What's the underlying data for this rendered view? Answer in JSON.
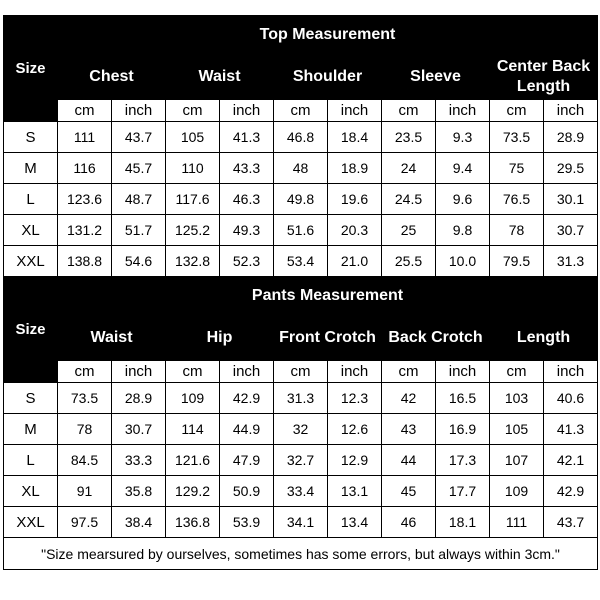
{
  "size_label": "Size",
  "unit_cm": "cm",
  "unit_inch": "inch",
  "top": {
    "title": "Top Measurement",
    "groups": [
      "Chest",
      "Waist",
      "Shoulder",
      "Sleeve",
      "Center Back Length"
    ],
    "rows": [
      {
        "size": "S",
        "values": [
          "111",
          "43.7",
          "105",
          "41.3",
          "46.8",
          "18.4",
          "23.5",
          "9.3",
          "73.5",
          "28.9"
        ]
      },
      {
        "size": "M",
        "values": [
          "116",
          "45.7",
          "110",
          "43.3",
          "48",
          "18.9",
          "24",
          "9.4",
          "75",
          "29.5"
        ]
      },
      {
        "size": "L",
        "values": [
          "123.6",
          "48.7",
          "117.6",
          "46.3",
          "49.8",
          "19.6",
          "24.5",
          "9.6",
          "76.5",
          "30.1"
        ]
      },
      {
        "size": "XL",
        "values": [
          "131.2",
          "51.7",
          "125.2",
          "49.3",
          "51.6",
          "20.3",
          "25",
          "9.8",
          "78",
          "30.7"
        ]
      },
      {
        "size": "XXL",
        "values": [
          "138.8",
          "54.6",
          "132.8",
          "52.3",
          "53.4",
          "21.0",
          "25.5",
          "10.0",
          "79.5",
          "31.3"
        ]
      }
    ]
  },
  "pants": {
    "title": "Pants Measurement",
    "groups": [
      "Waist",
      "Hip",
      "Front Crotch",
      "Back Crotch",
      "Length"
    ],
    "rows": [
      {
        "size": "S",
        "values": [
          "73.5",
          "28.9",
          "109",
          "42.9",
          "31.3",
          "12.3",
          "42",
          "16.5",
          "103",
          "40.6"
        ]
      },
      {
        "size": "M",
        "values": [
          "78",
          "30.7",
          "114",
          "44.9",
          "32",
          "12.6",
          "43",
          "16.9",
          "105",
          "41.3"
        ]
      },
      {
        "size": "L",
        "values": [
          "84.5",
          "33.3",
          "121.6",
          "47.9",
          "32.7",
          "12.9",
          "44",
          "17.3",
          "107",
          "42.1"
        ]
      },
      {
        "size": "XL",
        "values": [
          "91",
          "35.8",
          "129.2",
          "50.9",
          "33.4",
          "13.1",
          "45",
          "17.7",
          "109",
          "42.9"
        ]
      },
      {
        "size": "XXL",
        "values": [
          "97.5",
          "38.4",
          "136.8",
          "53.9",
          "34.1",
          "13.4",
          "46",
          "18.1",
          "111",
          "43.7"
        ]
      }
    ]
  },
  "note": "\"Size mearsured by ourselves, sometimes has some errors, but always within 3cm.\""
}
